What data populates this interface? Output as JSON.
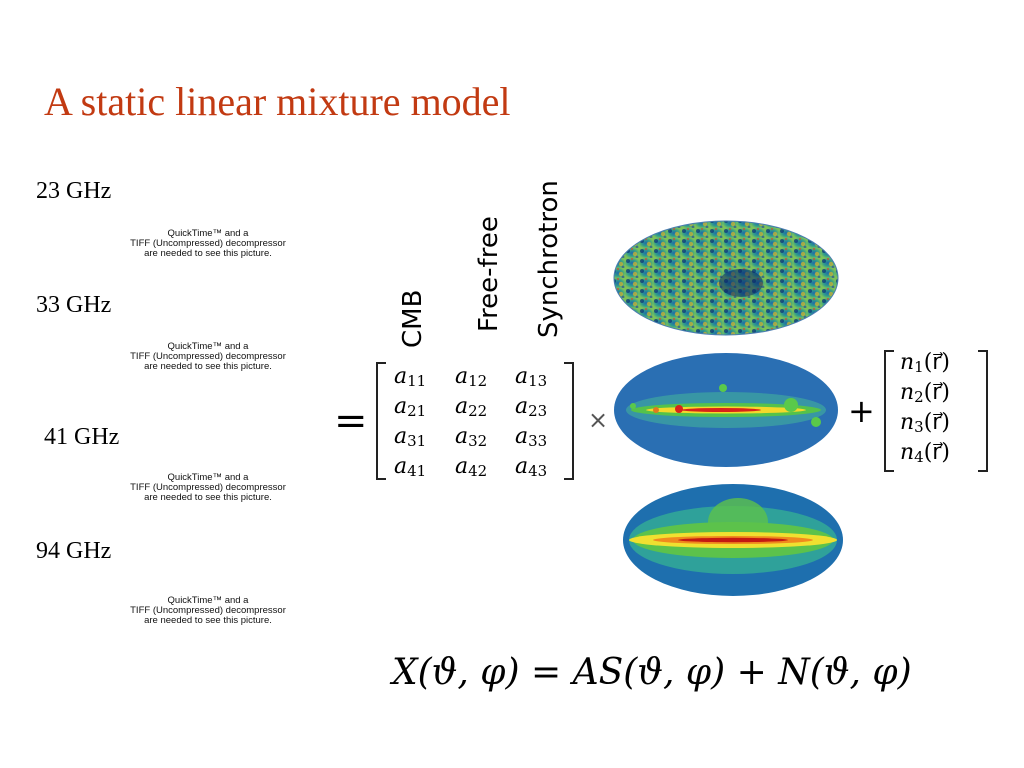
{
  "slide": {
    "title": "A static linear mixture model",
    "frequencies": [
      "23 GHz",
      "33 GHz",
      "41 GHz",
      "94 GHz"
    ],
    "placeholder_lines": [
      "QuickTime™ and a",
      "TIFF (Uncompressed) decompressor",
      "are needed to see this picture."
    ],
    "components": [
      "CMB",
      "Free-free",
      "Synchrotron"
    ],
    "equals": "=",
    "times": "×",
    "plus": "+",
    "matrix": [
      [
        "a",
        "11",
        "a",
        "12",
        "a",
        "13"
      ],
      [
        "a",
        "21",
        "a",
        "22",
        "a",
        "23"
      ],
      [
        "a",
        "31",
        "a",
        "32",
        "a",
        "33"
      ],
      [
        "a",
        "41",
        "a",
        "42",
        "a",
        "43"
      ]
    ],
    "noise": [
      {
        "sym": "n",
        "sub": "1",
        "arg": "(r⃗)"
      },
      {
        "sym": "n",
        "sub": "2",
        "arg": "(r⃗)"
      },
      {
        "sym": "n",
        "sub": "3",
        "arg": "(r⃗)"
      },
      {
        "sym": "n",
        "sub": "4",
        "arg": "(r⃗)"
      }
    ],
    "formula": "X(ϑ, φ) = AS(ϑ, φ) + N(ϑ, φ)"
  }
}
